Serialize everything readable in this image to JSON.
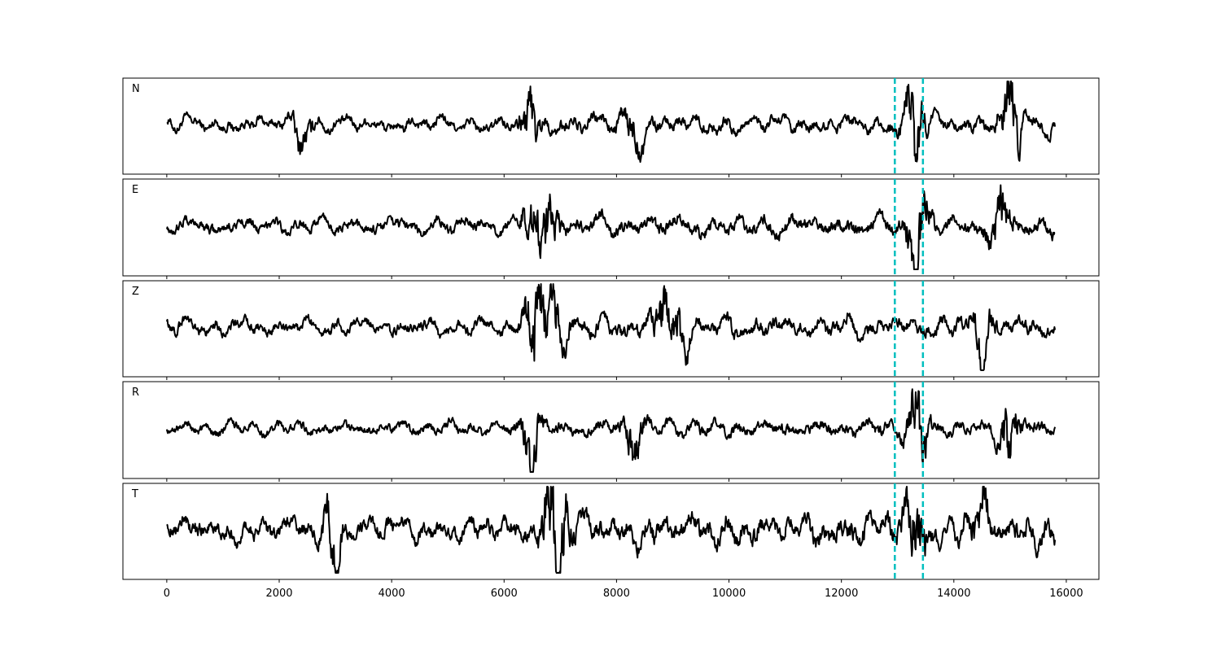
{
  "chart_data": {
    "type": "line",
    "title": "",
    "xlabel": "",
    "ylabel": "",
    "xlim": [
      -780,
      16580
    ],
    "x_ticks": [
      0,
      2000,
      4000,
      6000,
      8000,
      10000,
      12000,
      14000,
      16000
    ],
    "x_tick_labels": [
      "0",
      "2000",
      "4000",
      "6000",
      "8000",
      "10000",
      "12000",
      "14000",
      "16000"
    ],
    "data_x_range": [
      0,
      15800
    ],
    "grid": false,
    "legend": "none",
    "trace_color": "#000000",
    "marker_color": "#00bfbf",
    "vertical_markers": [
      12950,
      13450
    ],
    "panels": [
      {
        "label": "N"
      },
      {
        "label": "E"
      },
      {
        "label": "Z"
      },
      {
        "label": "R"
      },
      {
        "label": "T"
      }
    ]
  }
}
